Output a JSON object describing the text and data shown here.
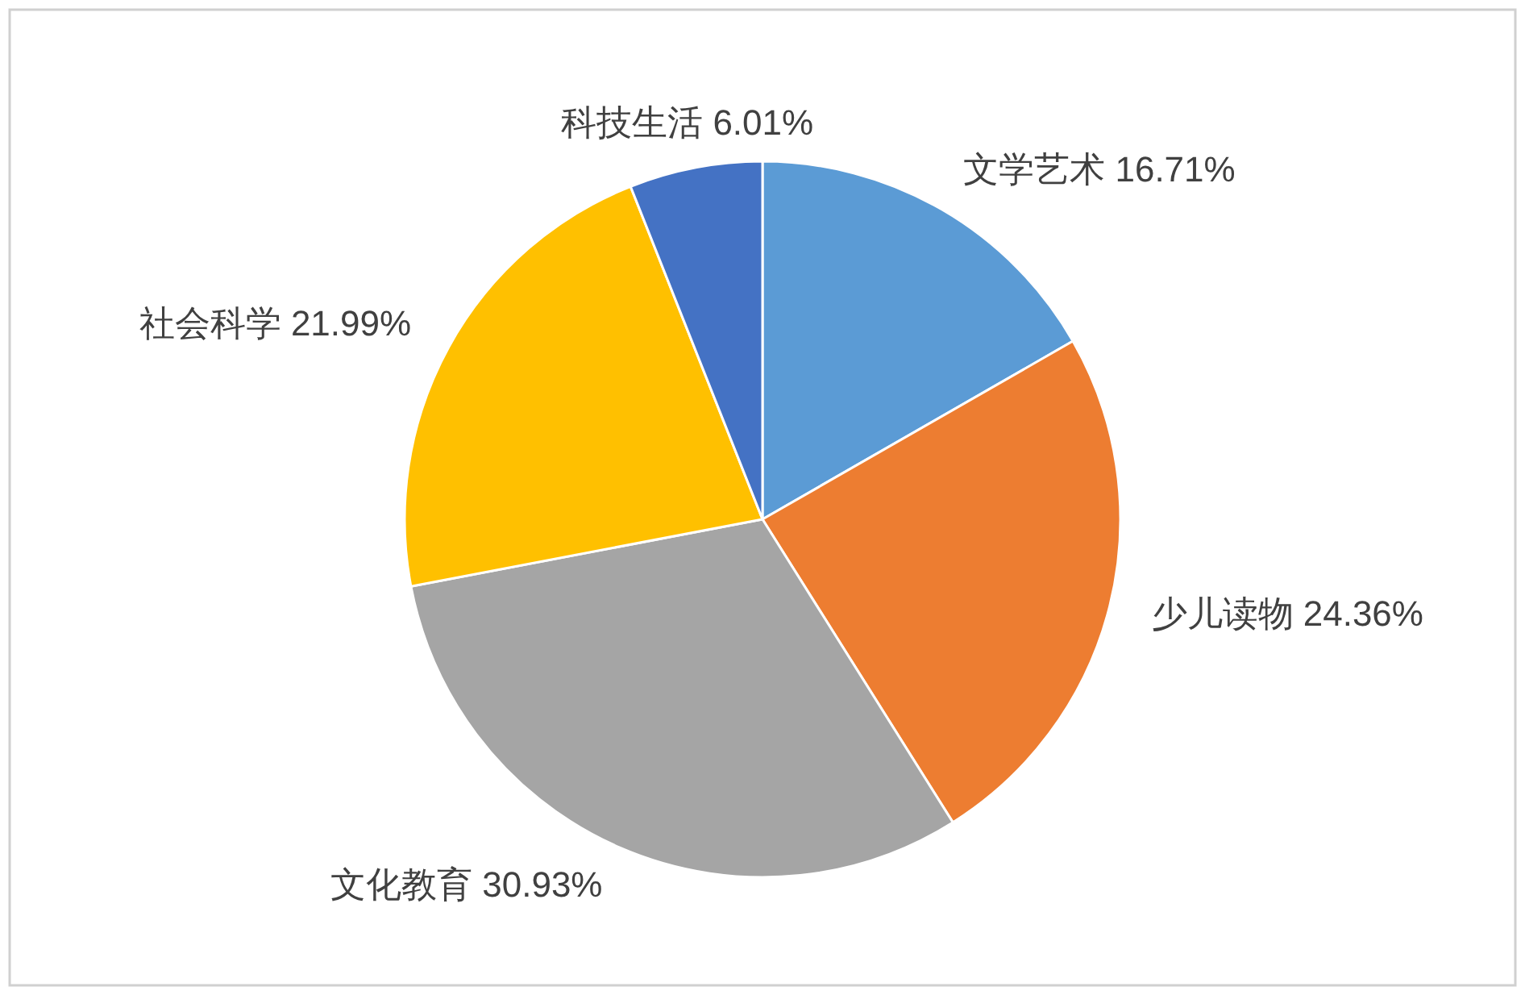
{
  "chart_data": {
    "type": "pie",
    "categories": [
      "文学艺术",
      "少儿读物",
      "文化教育",
      "社会科学",
      "科技生活"
    ],
    "values": [
      16.71,
      24.36,
      30.93,
      21.99,
      6.01
    ],
    "value_labels": [
      "16.71%",
      "24.36%",
      "30.93%",
      "21.99%",
      "6.01%"
    ],
    "colors": [
      "#5b9bd5",
      "#ed7d31",
      "#a5a5a5",
      "#ffc000",
      "#4472c4"
    ],
    "legend": false
  }
}
